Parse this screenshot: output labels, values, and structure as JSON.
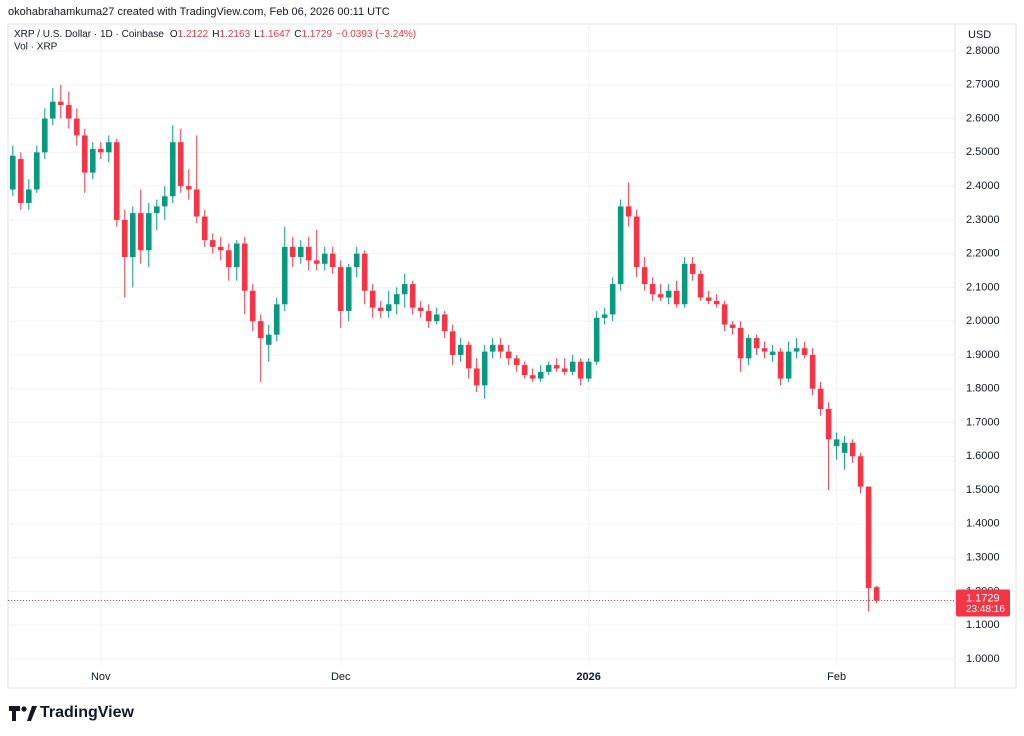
{
  "header": "okohabrahamkuma27 created with TradingView.com, Feb 06, 2026 00:11 UTC",
  "brand": "TradingView",
  "chart_data": {
    "type": "candlestick",
    "symbol": "XRP / U.S. Dollar · 1D · Coinbase",
    "ohlc_labels": [
      "O",
      "H",
      "L",
      "C"
    ],
    "change": "−0.0393 (−3.24%)",
    "volume_label": "Vol · XRP",
    "currency": "USD",
    "countdown": "23:48:16",
    "up_color": "#089981",
    "down_color": "#f23645",
    "grid": true,
    "xlim": [
      -0.6,
      117.8
    ],
    "xticks": [
      {
        "value": 11,
        "label": "Nov"
      },
      {
        "value": 41,
        "label": "Dec"
      },
      {
        "value": 72,
        "label": "2026"
      },
      {
        "value": 103,
        "label": "Feb"
      }
    ],
    "ylim": [
      0.979,
      2.88
    ],
    "yticks": [
      {
        "value": 1.0,
        "label": "1.0000"
      },
      {
        "value": 1.1,
        "label": "1.1000"
      },
      {
        "value": 1.2,
        "label": "1.2000"
      },
      {
        "value": 1.3,
        "label": "1.3000"
      },
      {
        "value": 1.4,
        "label": "1.4000"
      },
      {
        "value": 1.5,
        "label": "1.5000"
      },
      {
        "value": 1.6,
        "label": "1.6000"
      },
      {
        "value": 1.7,
        "label": "1.7000"
      },
      {
        "value": 1.8,
        "label": "1.8000"
      },
      {
        "value": 1.9,
        "label": "1.9000"
      },
      {
        "value": 2.0,
        "label": "2.0000"
      },
      {
        "value": 2.1,
        "label": "2.1000"
      },
      {
        "value": 2.2,
        "label": "2.2000"
      },
      {
        "value": 2.3,
        "label": "2.3000"
      },
      {
        "value": 2.4,
        "label": "2.4000"
      },
      {
        "value": 2.5,
        "label": "2.5000"
      },
      {
        "value": 2.6,
        "label": "2.6000"
      },
      {
        "value": 2.7,
        "label": "2.7000"
      },
      {
        "value": 2.8,
        "label": "2.8000"
      }
    ],
    "ohlc": [
      [
        2.39,
        2.52,
        2.37,
        2.49
      ],
      [
        2.48,
        2.5,
        2.33,
        2.35
      ],
      [
        2.35,
        2.42,
        2.33,
        2.39
      ],
      [
        2.39,
        2.52,
        2.38,
        2.5
      ],
      [
        2.5,
        2.63,
        2.48,
        2.6
      ],
      [
        2.6,
        2.69,
        2.58,
        2.65
      ],
      [
        2.65,
        2.7,
        2.6,
        2.64
      ],
      [
        2.64,
        2.68,
        2.57,
        2.6
      ],
      [
        2.6,
        2.63,
        2.52,
        2.55
      ],
      [
        2.55,
        2.57,
        2.38,
        2.44
      ],
      [
        2.44,
        2.53,
        2.42,
        2.51
      ],
      [
        2.51,
        2.53,
        2.48,
        2.5
      ],
      [
        2.5,
        2.55,
        2.47,
        2.53
      ],
      [
        2.53,
        2.54,
        2.28,
        2.3
      ],
      [
        2.3,
        2.33,
        2.07,
        2.19
      ],
      [
        2.19,
        2.34,
        2.1,
        2.32
      ],
      [
        2.32,
        2.39,
        2.17,
        2.21
      ],
      [
        2.21,
        2.35,
        2.16,
        2.32
      ],
      [
        2.32,
        2.36,
        2.27,
        2.34
      ],
      [
        2.34,
        2.4,
        2.3,
        2.37
      ],
      [
        2.37,
        2.58,
        2.35,
        2.53
      ],
      [
        2.53,
        2.57,
        2.38,
        2.4
      ],
      [
        2.4,
        2.45,
        2.36,
        2.39
      ],
      [
        2.39,
        2.55,
        2.29,
        2.31
      ],
      [
        2.31,
        2.33,
        2.22,
        2.24
      ],
      [
        2.24,
        2.26,
        2.2,
        2.22
      ],
      [
        2.22,
        2.25,
        2.18,
        2.21
      ],
      [
        2.21,
        2.23,
        2.12,
        2.16
      ],
      [
        2.16,
        2.24,
        2.12,
        2.23
      ],
      [
        2.23,
        2.25,
        2.02,
        2.09
      ],
      [
        2.09,
        2.11,
        1.97,
        2.0
      ],
      [
        2.0,
        2.02,
        1.82,
        1.95
      ],
      [
        1.93,
        1.99,
        1.88,
        1.96
      ],
      [
        1.96,
        2.07,
        1.94,
        2.05
      ],
      [
        2.05,
        2.28,
        2.03,
        2.22
      ],
      [
        2.22,
        2.25,
        2.16,
        2.19
      ],
      [
        2.19,
        2.24,
        2.17,
        2.22
      ],
      [
        2.22,
        2.25,
        2.15,
        2.18
      ],
      [
        2.18,
        2.27,
        2.15,
        2.17
      ],
      [
        2.17,
        2.22,
        2.15,
        2.2
      ],
      [
        2.2,
        2.22,
        2.14,
        2.16
      ],
      [
        2.16,
        2.18,
        1.98,
        2.03
      ],
      [
        2.03,
        2.17,
        2.0,
        2.16
      ],
      [
        2.16,
        2.22,
        2.13,
        2.2
      ],
      [
        2.2,
        2.21,
        2.05,
        2.09
      ],
      [
        2.09,
        2.11,
        2.01,
        2.04
      ],
      [
        2.04,
        2.06,
        2.01,
        2.03
      ],
      [
        2.03,
        2.09,
        2.01,
        2.05
      ],
      [
        2.05,
        2.1,
        2.02,
        2.08
      ],
      [
        2.08,
        2.14,
        2.04,
        2.11
      ],
      [
        2.11,
        2.12,
        2.02,
        2.04
      ],
      [
        2.04,
        2.06,
        2.01,
        2.03
      ],
      [
        2.03,
        2.05,
        1.98,
        2.0
      ],
      [
        2.0,
        2.04,
        1.99,
        2.02
      ],
      [
        2.02,
        2.03,
        1.95,
        1.97
      ],
      [
        1.97,
        1.99,
        1.87,
        1.9
      ],
      [
        1.9,
        1.95,
        1.88,
        1.93
      ],
      [
        1.93,
        1.94,
        1.83,
        1.86
      ],
      [
        1.86,
        1.89,
        1.79,
        1.81
      ],
      [
        1.81,
        1.93,
        1.77,
        1.91
      ],
      [
        1.91,
        1.95,
        1.89,
        1.93
      ],
      [
        1.93,
        1.95,
        1.89,
        1.91
      ],
      [
        1.91,
        1.93,
        1.87,
        1.89
      ],
      [
        1.89,
        1.9,
        1.85,
        1.87
      ],
      [
        1.87,
        1.88,
        1.83,
        1.84
      ],
      [
        1.84,
        1.86,
        1.82,
        1.83
      ],
      [
        1.83,
        1.87,
        1.82,
        1.85
      ],
      [
        1.85,
        1.88,
        1.84,
        1.87
      ],
      [
        1.87,
        1.89,
        1.85,
        1.86
      ],
      [
        1.86,
        1.89,
        1.84,
        1.85
      ],
      [
        1.85,
        1.9,
        1.84,
        1.88
      ],
      [
        1.88,
        1.89,
        1.81,
        1.83
      ],
      [
        1.83,
        1.89,
        1.82,
        1.88
      ],
      [
        1.88,
        2.03,
        1.87,
        2.01
      ],
      [
        2.01,
        2.04,
        1.99,
        2.02
      ],
      [
        2.02,
        2.13,
        2.0,
        2.11
      ],
      [
        2.11,
        2.36,
        2.09,
        2.34
      ],
      [
        2.34,
        2.41,
        2.28,
        2.31
      ],
      [
        2.31,
        2.33,
        2.13,
        2.16
      ],
      [
        2.16,
        2.19,
        2.09,
        2.11
      ],
      [
        2.11,
        2.13,
        2.06,
        2.08
      ],
      [
        2.08,
        2.11,
        2.06,
        2.07
      ],
      [
        2.07,
        2.11,
        2.05,
        2.09
      ],
      [
        2.09,
        2.12,
        2.04,
        2.05
      ],
      [
        2.05,
        2.19,
        2.04,
        2.17
      ],
      [
        2.17,
        2.19,
        2.12,
        2.14
      ],
      [
        2.14,
        2.15,
        2.06,
        2.07
      ],
      [
        2.07,
        2.09,
        2.05,
        2.06
      ],
      [
        2.06,
        2.08,
        2.04,
        2.05
      ],
      [
        2.05,
        2.06,
        1.97,
        1.99
      ],
      [
        1.99,
        2.0,
        1.96,
        1.98
      ],
      [
        1.98,
        2.0,
        1.85,
        1.89
      ],
      [
        1.89,
        1.96,
        1.87,
        1.95
      ],
      [
        1.95,
        1.96,
        1.9,
        1.92
      ],
      [
        1.92,
        1.94,
        1.89,
        1.91
      ],
      [
        1.9,
        1.93,
        1.88,
        1.91
      ],
      [
        1.91,
        1.92,
        1.81,
        1.83
      ],
      [
        1.83,
        1.94,
        1.82,
        1.91
      ],
      [
        1.91,
        1.95,
        1.89,
        1.92
      ],
      [
        1.92,
        1.94,
        1.89,
        1.9
      ],
      [
        1.9,
        1.92,
        1.78,
        1.8
      ],
      [
        1.8,
        1.82,
        1.72,
        1.74
      ],
      [
        1.74,
        1.76,
        1.5,
        1.65
      ],
      [
        1.63,
        1.67,
        1.59,
        1.65
      ],
      [
        1.61,
        1.66,
        1.56,
        1.64
      ],
      [
        1.64,
        1.65,
        1.58,
        1.6
      ],
      [
        1.6,
        1.61,
        1.49,
        1.51
      ],
      [
        1.51,
        1.51,
        1.14,
        1.21
      ],
      [
        1.2122,
        1.2163,
        1.1647,
        1.1729
      ]
    ]
  }
}
